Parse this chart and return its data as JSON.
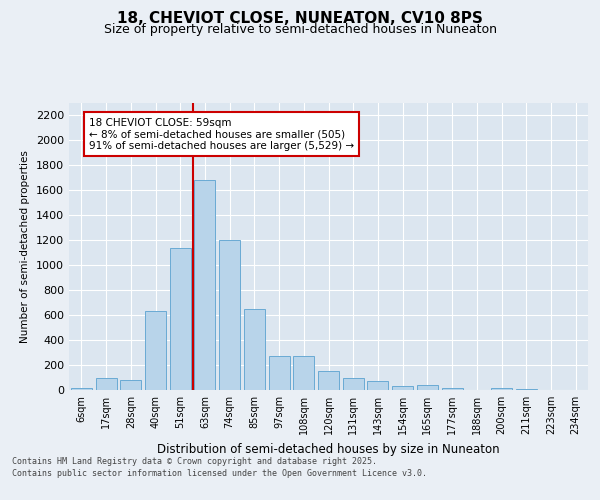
{
  "title_line1": "18, CHEVIOT CLOSE, NUNEATON, CV10 8PS",
  "title_line2": "Size of property relative to semi-detached houses in Nuneaton",
  "xlabel": "Distribution of semi-detached houses by size in Nuneaton",
  "ylabel": "Number of semi-detached properties",
  "annotation_title": "18 CHEVIOT CLOSE: 59sqm",
  "annotation_line2": "← 8% of semi-detached houses are smaller (505)",
  "annotation_line3": "91% of semi-detached houses are larger (5,529) →",
  "footer_line1": "Contains HM Land Registry data © Crown copyright and database right 2025.",
  "footer_line2": "Contains public sector information licensed under the Open Government Licence v3.0.",
  "bar_labels": [
    "6sqm",
    "17sqm",
    "28sqm",
    "40sqm",
    "51sqm",
    "63sqm",
    "74sqm",
    "85sqm",
    "97sqm",
    "108sqm",
    "120sqm",
    "131sqm",
    "143sqm",
    "154sqm",
    "165sqm",
    "177sqm",
    "188sqm",
    "200sqm",
    "211sqm",
    "223sqm",
    "234sqm"
  ],
  "bar_values": [
    15,
    100,
    80,
    635,
    1140,
    1680,
    1200,
    650,
    270,
    270,
    150,
    100,
    75,
    35,
    40,
    15,
    0,
    15,
    5,
    3,
    3
  ],
  "bar_color": "#b8d4ea",
  "bar_edge_color": "#6aaad4",
  "vline_color": "#cc0000",
  "annotation_box_color": "#cc0000",
  "ylim": [
    0,
    2300
  ],
  "yticks": [
    0,
    200,
    400,
    600,
    800,
    1000,
    1200,
    1400,
    1600,
    1800,
    2000,
    2200
  ],
  "background_color": "#eaeff5",
  "plot_bg_color": "#dce6f0",
  "vline_index": 4.5
}
